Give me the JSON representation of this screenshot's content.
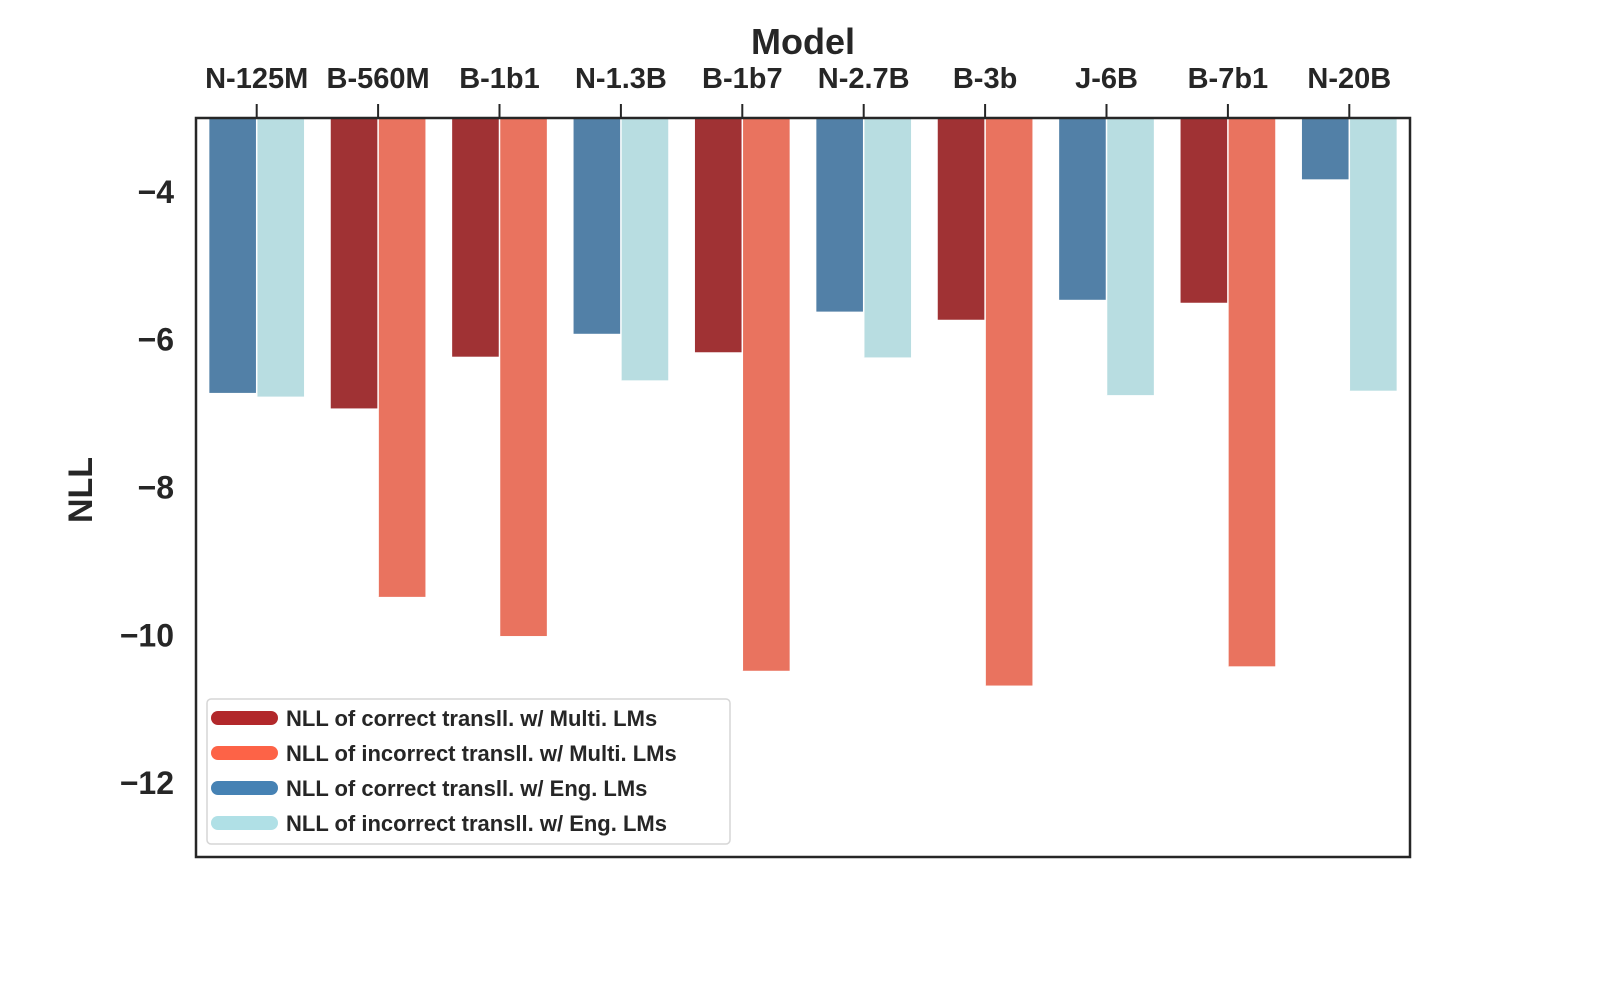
{
  "chart_data": {
    "type": "bar",
    "title": "Model",
    "xlabel": "Model",
    "ylabel": "NLL",
    "ylim": [
      -13,
      -3
    ],
    "yticks": [
      -4,
      -6,
      -8,
      -10,
      -12
    ],
    "ytick_labels": [
      "−4",
      "−6",
      "−8",
      "−10",
      "−12"
    ],
    "categories": [
      "N-125M",
      "B-560M",
      "B-1b1",
      "N-1.3B",
      "B-1b7",
      "N-2.7B",
      "B-3b",
      "J-6B",
      "B-7b1",
      "N-20B"
    ],
    "family": [
      "eng",
      "multi",
      "multi",
      "eng",
      "multi",
      "eng",
      "multi",
      "eng",
      "multi",
      "eng"
    ],
    "correct": [
      -6.72,
      -6.93,
      -6.23,
      -5.92,
      -6.17,
      -5.62,
      -5.73,
      -5.46,
      -5.5,
      -3.83
    ],
    "incorrect": [
      -6.77,
      -9.48,
      -10.01,
      -6.55,
      -10.48,
      -6.24,
      -10.68,
      -6.75,
      -10.42,
      -6.69
    ],
    "legend": [
      {
        "label": "NLL of correct transll. w/ Multi. LMs",
        "color": "#b2282b"
      },
      {
        "label": "NLL of incorrect transll. w/ Multi. LMs",
        "color": "#fd6347"
      },
      {
        "label": "NLL of correct transll. w/ Eng. LMs",
        "color": "#4682b4"
      },
      {
        "label": "NLL of incorrect transll. w/ Eng. LMs",
        "color": "#b0e0e6"
      }
    ],
    "legend_position": "lower-left",
    "colors": {
      "multi_correct": "#a03234",
      "multi_incorrect": "#e9735f",
      "eng_correct": "#5280a7",
      "eng_incorrect": "#b8dde1"
    },
    "grid": false
  }
}
